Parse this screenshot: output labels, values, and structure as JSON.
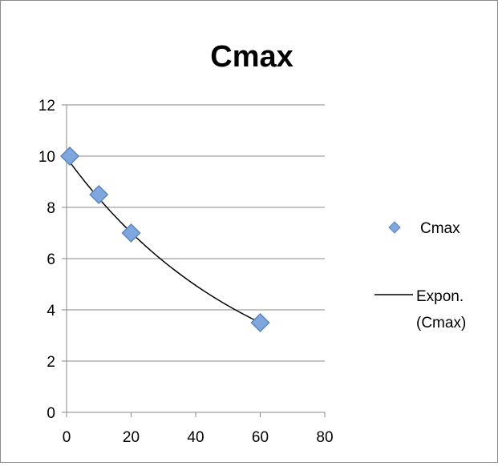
{
  "chart_data": {
    "type": "scatter",
    "title": "Cmax",
    "xlabel": "",
    "ylabel": "",
    "xlim": [
      0,
      80
    ],
    "ylim": [
      0,
      12
    ],
    "x_ticks": [
      "0",
      "20",
      "40",
      "60",
      "80"
    ],
    "y_ticks": [
      "0",
      "2",
      "4",
      "6",
      "8",
      "10",
      "12"
    ],
    "grid": "horizontal",
    "legend_position": "right",
    "series": [
      {
        "name": "Cmax",
        "marker": "diamond",
        "color": "#6f9fd8",
        "points": [
          {
            "x": 1,
            "y": 10
          },
          {
            "x": 10,
            "y": 8.5
          },
          {
            "x": 20,
            "y": 7
          },
          {
            "x": 60,
            "y": 3.5
          }
        ]
      }
    ],
    "trendline": {
      "name_line1": "Expon.",
      "name_line2": "(Cmax)",
      "type": "exponential",
      "color": "#000000",
      "a": 9.94,
      "b": -0.0174
    }
  }
}
